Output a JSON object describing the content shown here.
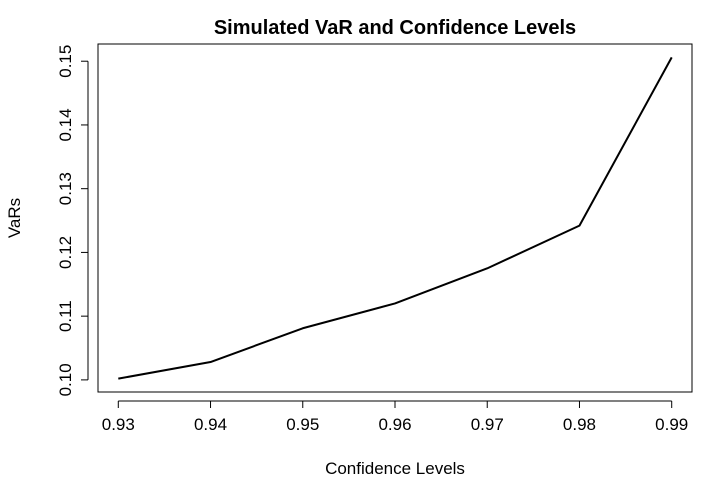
{
  "chart_data": {
    "type": "line",
    "title": "Simulated VaR and Confidence Levels",
    "xlabel": "Confidence Levels",
    "ylabel": "VaRs",
    "x": [
      0.93,
      0.94,
      0.95,
      0.96,
      0.97,
      0.98,
      0.99
    ],
    "series": [
      {
        "values": [
          0.1002,
          0.1028,
          0.1081,
          0.112,
          0.1175,
          0.1242,
          0.1506
        ]
      }
    ],
    "xticks": [
      "0.93",
      "0.94",
      "0.95",
      "0.96",
      "0.97",
      "0.98",
      "0.99"
    ],
    "yticks": [
      "0.10",
      "0.11",
      "0.12",
      "0.13",
      "0.14",
      "0.15"
    ],
    "xlim": [
      0.9278,
      0.9922
    ],
    "ylim": [
      0.0981,
      0.1527
    ],
    "grid": false,
    "line_color": "#000000"
  }
}
